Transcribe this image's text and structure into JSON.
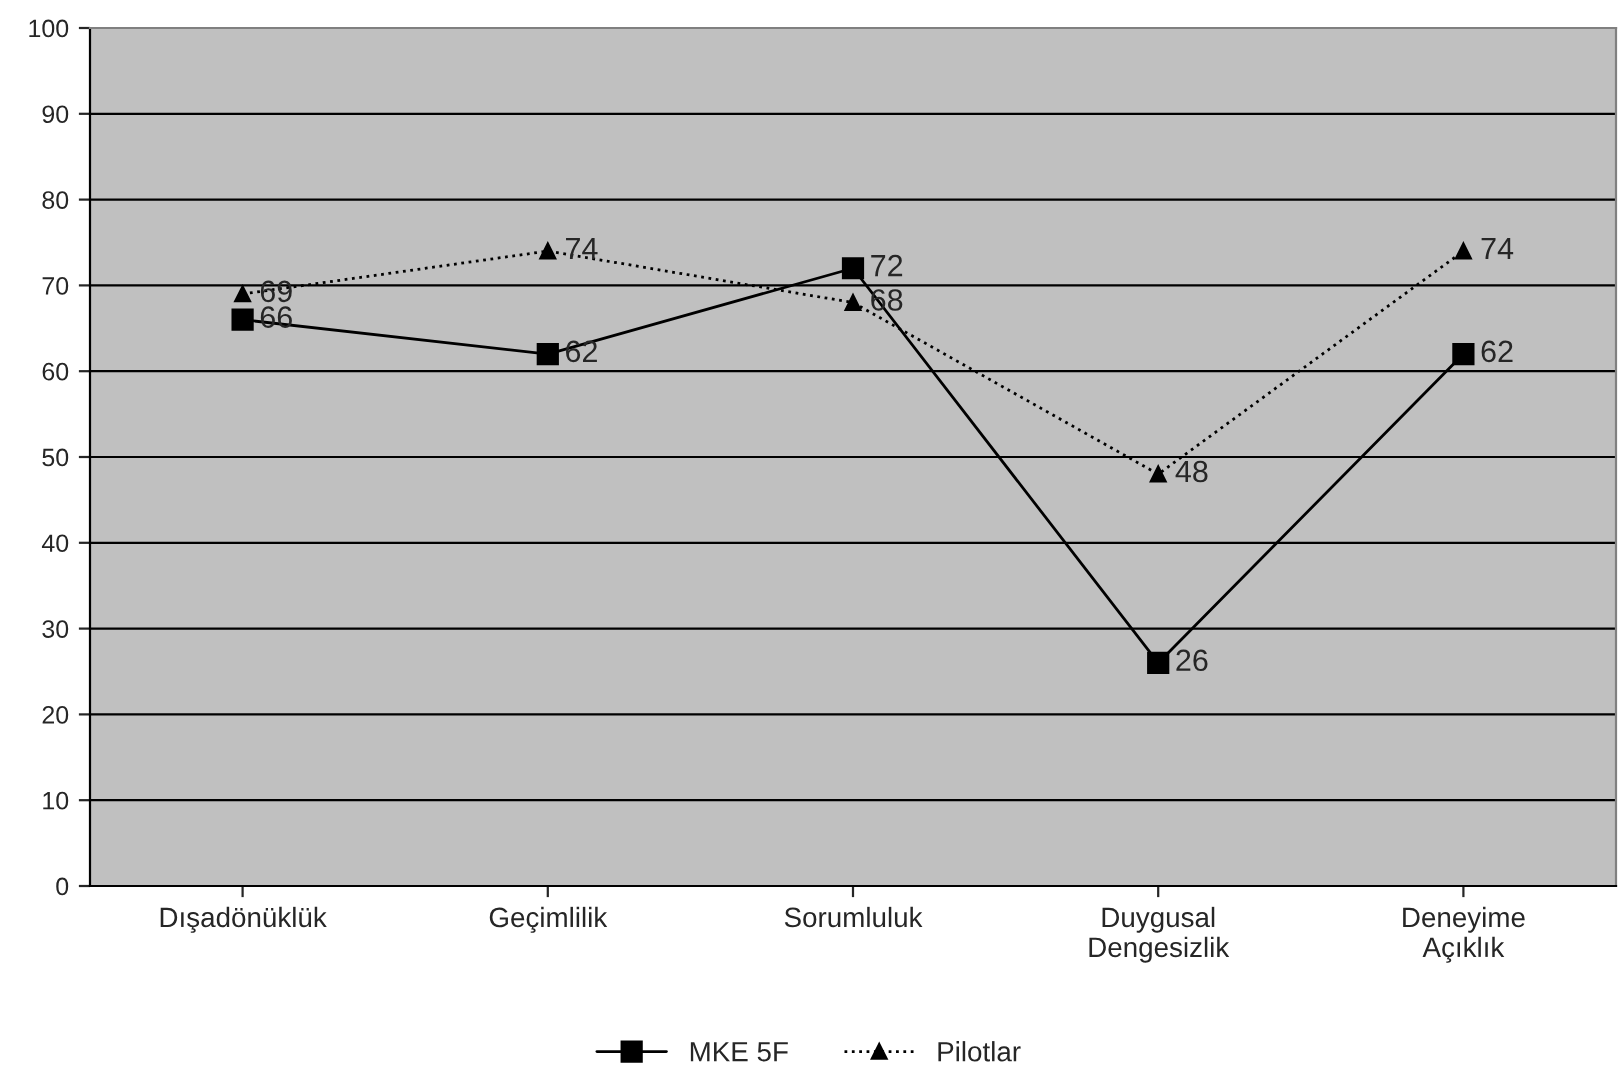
{
  "chart_data": {
    "type": "line",
    "categories": [
      "Dışadönüklük",
      "Geçimlilik",
      "Sorumluluk",
      "Duygusal\nDengesizlik",
      "Deneyime\nAçıklık"
    ],
    "series": [
      {
        "name": "MKE 5F",
        "color": "#000000",
        "values": [
          66,
          62,
          72,
          26,
          62
        ],
        "marker": "square",
        "line_style": "solid"
      },
      {
        "name": "Pilotlar",
        "color": "#000000",
        "values": [
          69,
          74,
          68,
          48,
          74
        ],
        "marker": "triangle",
        "line_style": "dotted"
      }
    ],
    "ylim": [
      0,
      100
    ],
    "yticks": [
      0,
      10,
      20,
      30,
      40,
      50,
      60,
      70,
      80,
      90,
      100
    ],
    "grid": "y",
    "legend": "bottom",
    "data_labels": true
  }
}
